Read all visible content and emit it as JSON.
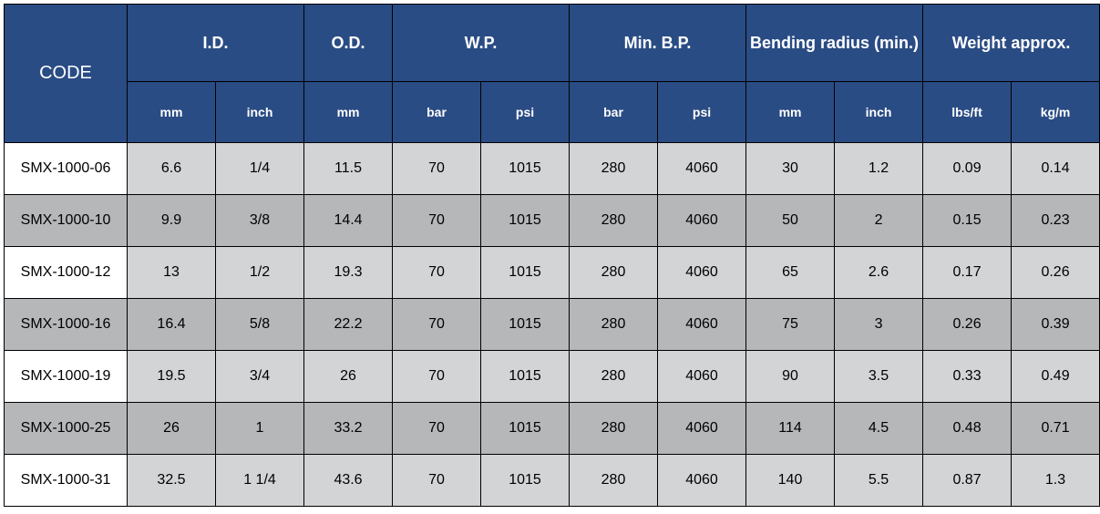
{
  "table": {
    "type": "table",
    "header_bg": "#2a4c84",
    "header_fg": "#ffffff",
    "row_light_bg": "#d3d4d6",
    "row_dark_bg": "#b5b7b9",
    "border_color": "#000000",
    "code_header": "CODE",
    "groups": [
      {
        "label": "I.D.",
        "subs": [
          "mm",
          "inch"
        ]
      },
      {
        "label": "O.D.",
        "subs": [
          "mm"
        ]
      },
      {
        "label": "W.P.",
        "subs": [
          "bar",
          "psi"
        ]
      },
      {
        "label": "Min. B.P.",
        "subs": [
          "bar",
          "psi"
        ]
      },
      {
        "label": "Bending radius (min.)",
        "subs": [
          "mm",
          "inch"
        ]
      },
      {
        "label": "Weight approx.",
        "subs": [
          "lbs/ft",
          "kg/m"
        ]
      }
    ],
    "rows": [
      {
        "code": "SMX-1000-06",
        "vals": [
          "6.6",
          "1/4",
          "11.5",
          "70",
          "1015",
          "280",
          "4060",
          "30",
          "1.2",
          "0.09",
          "0.14"
        ]
      },
      {
        "code": "SMX-1000-10",
        "vals": [
          "9.9",
          "3/8",
          "14.4",
          "70",
          "1015",
          "280",
          "4060",
          "50",
          "2",
          "0.15",
          "0.23"
        ]
      },
      {
        "code": "SMX-1000-12",
        "vals": [
          "13",
          "1/2",
          "19.3",
          "70",
          "1015",
          "280",
          "4060",
          "65",
          "2.6",
          "0.17",
          "0.26"
        ]
      },
      {
        "code": "SMX-1000-16",
        "vals": [
          "16.4",
          "5/8",
          "22.2",
          "70",
          "1015",
          "280",
          "4060",
          "75",
          "3",
          "0.26",
          "0.39"
        ]
      },
      {
        "code": "SMX-1000-19",
        "vals": [
          "19.5",
          "3/4",
          "26",
          "70",
          "1015",
          "280",
          "4060",
          "90",
          "3.5",
          "0.33",
          "0.49"
        ]
      },
      {
        "code": "SMX-1000-25",
        "vals": [
          "26",
          "1",
          "33.2",
          "70",
          "1015",
          "280",
          "4060",
          "114",
          "4.5",
          "0.48",
          "0.71"
        ]
      },
      {
        "code": "SMX-1000-31",
        "vals": [
          "32.5",
          "1 1/4",
          "43.6",
          "70",
          "1015",
          "280",
          "4060",
          "140",
          "5.5",
          "0.87",
          "1.3"
        ]
      }
    ]
  }
}
